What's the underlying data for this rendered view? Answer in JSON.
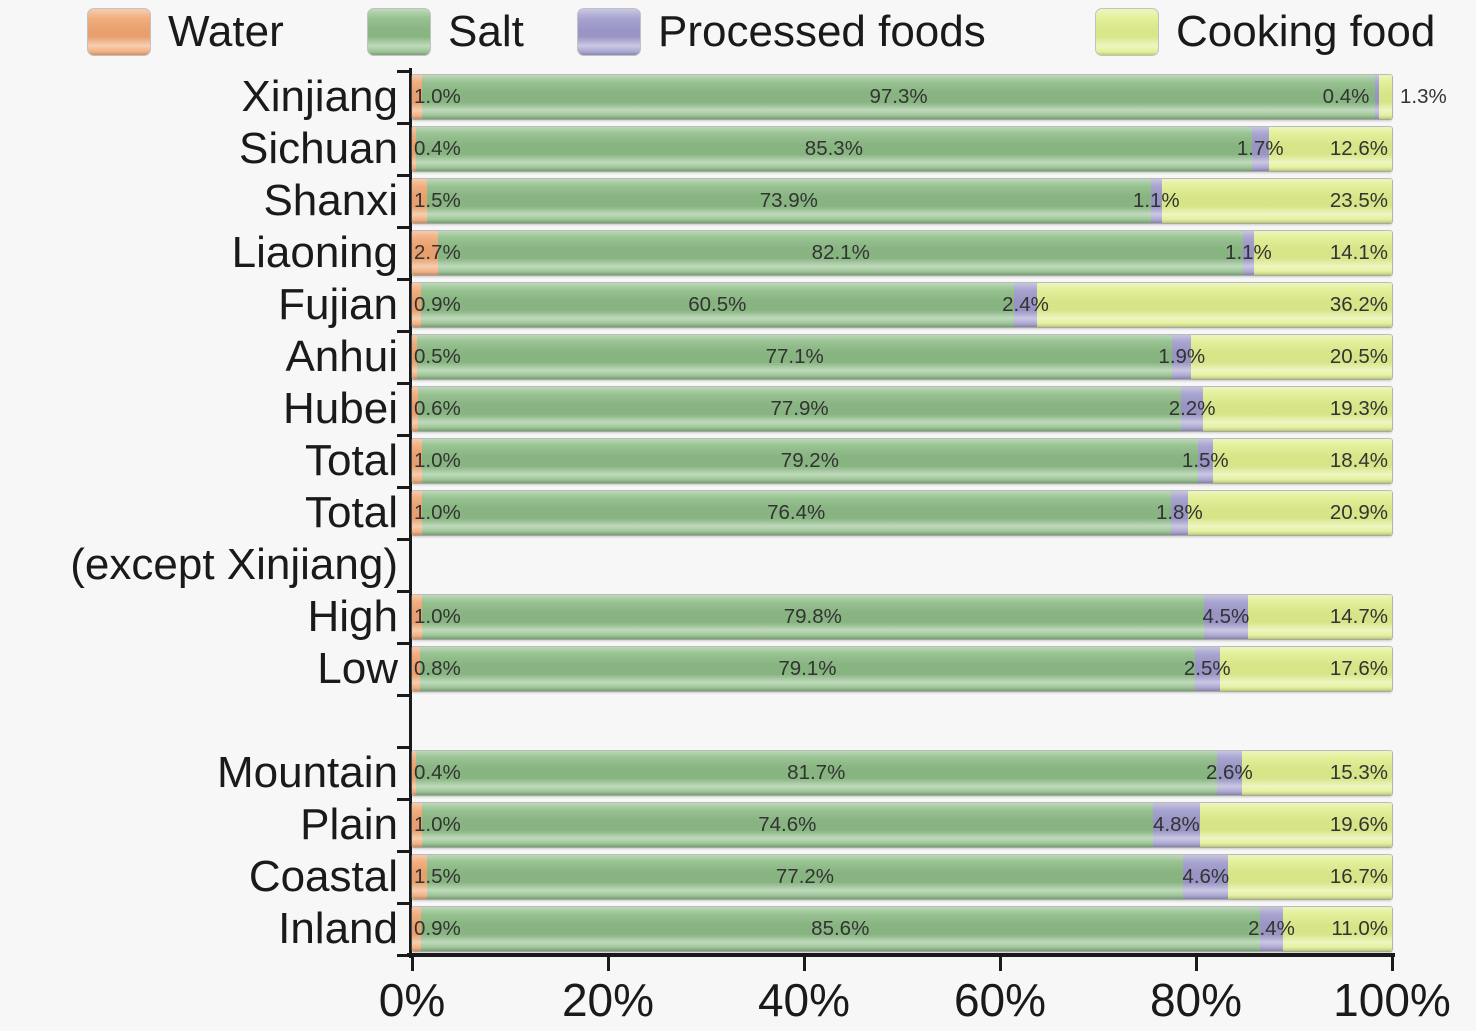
{
  "colors": {
    "water": "#f0a571",
    "salt": "#8cbb85",
    "processed": "#9e9acb",
    "cooking": "#e0ee8e",
    "axis": "#1a1a1a"
  },
  "legend": [
    {
      "key": "water",
      "label": "Water"
    },
    {
      "key": "salt",
      "label": "Salt"
    },
    {
      "key": "processed",
      "label": "Processed foods"
    },
    {
      "key": "cooking",
      "label": "Cooking food"
    }
  ],
  "chart_data": {
    "type": "bar",
    "stacked": true,
    "orientation": "horizontal",
    "xlim": [
      0,
      100
    ],
    "xticks": [
      "0%",
      "20%",
      "40%",
      "60%",
      "80%",
      "100%"
    ],
    "series": [
      "Water",
      "Salt",
      "Processed foods",
      "Cooking food"
    ],
    "value_suffix": "%",
    "rows": [
      {
        "label": "Xinjiang",
        "group": "province",
        "values": [
          1.0,
          97.3,
          0.4,
          1.3
        ]
      },
      {
        "label": "Sichuan",
        "group": "province",
        "values": [
          0.4,
          85.3,
          1.7,
          12.6
        ]
      },
      {
        "label": "Shanxi",
        "group": "province",
        "values": [
          1.5,
          73.9,
          1.1,
          23.5
        ]
      },
      {
        "label": "Liaoning",
        "group": "province",
        "values": [
          2.7,
          82.1,
          1.1,
          14.1
        ]
      },
      {
        "label": "Fujian",
        "group": "province",
        "values": [
          0.9,
          60.5,
          2.4,
          36.2
        ]
      },
      {
        "label": "Anhui",
        "group": "province",
        "values": [
          0.5,
          77.1,
          1.9,
          20.5
        ]
      },
      {
        "label": "Hubei",
        "group": "province",
        "values": [
          0.6,
          77.9,
          2.2,
          19.3
        ]
      },
      {
        "label": "Total",
        "group": "province",
        "values": [
          1.0,
          79.2,
          1.5,
          18.4
        ]
      },
      {
        "label": "Total\n(except Xinjiang)",
        "group": "province",
        "values": [
          1.0,
          76.4,
          1.8,
          20.9
        ]
      },
      {
        "label": "High",
        "group": "income",
        "values": [
          1.0,
          79.8,
          4.5,
          14.7
        ]
      },
      {
        "label": "Low",
        "group": "income",
        "values": [
          0.8,
          79.1,
          2.5,
          17.6
        ]
      },
      {
        "label": "Mountain",
        "group": "terrain",
        "values": [
          0.4,
          81.7,
          2.6,
          15.3
        ]
      },
      {
        "label": "Plain",
        "group": "terrain",
        "values": [
          1.0,
          74.6,
          4.8,
          19.6
        ]
      },
      {
        "label": "Coastal",
        "group": "terrain",
        "values": [
          1.5,
          77.2,
          4.6,
          16.7
        ]
      },
      {
        "label": "Inland",
        "group": "terrain",
        "values": [
          0.9,
          85.6,
          2.4,
          11.0
        ]
      }
    ]
  }
}
